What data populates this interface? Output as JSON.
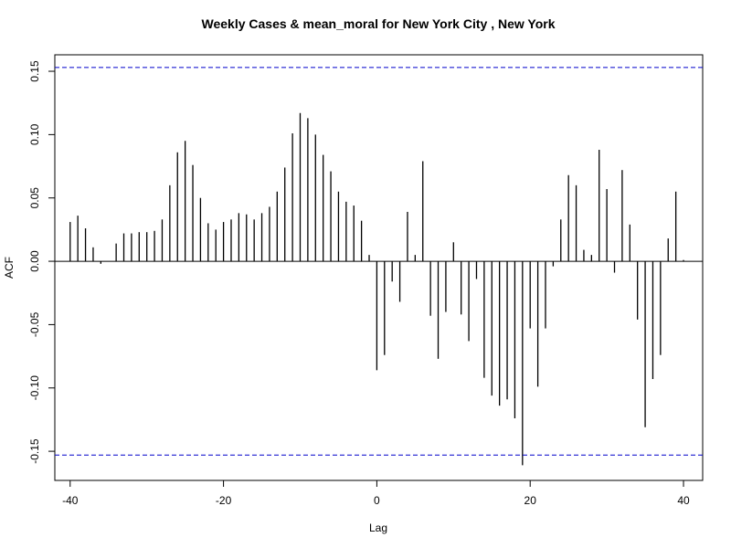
{
  "chart_data": {
    "type": "bar",
    "title": "Weekly Cases & mean_moral for New York City , New York",
    "xlabel": "Lag",
    "ylabel": "ACF",
    "xlim": [
      -42,
      42.5
    ],
    "ylim": [
      -0.173,
      0.163
    ],
    "x_ticks": [
      -40,
      -20,
      0,
      20,
      40
    ],
    "x_tick_labels": [
      "-40",
      "-20",
      "0",
      "20",
      "40"
    ],
    "y_ticks": [
      -0.15,
      -0.1,
      -0.05,
      0.0,
      0.05,
      0.1,
      0.15
    ],
    "y_tick_labels": [
      "-0.15",
      "-0.10",
      "-0.05",
      "0.00",
      "0.05",
      "0.10",
      "0.15"
    ],
    "confidence_limit": 0.153,
    "confidence_color": "#0000cc",
    "bar_color": "#000000",
    "lags": [
      -40,
      -39,
      -38,
      -37,
      -36,
      -35,
      -34,
      -33,
      -32,
      -31,
      -30,
      -29,
      -28,
      -27,
      -26,
      -25,
      -24,
      -23,
      -22,
      -21,
      -20,
      -19,
      -18,
      -17,
      -16,
      -15,
      -14,
      -13,
      -12,
      -11,
      -10,
      -9,
      -8,
      -7,
      -6,
      -5,
      -4,
      -3,
      -2,
      -1,
      0,
      1,
      2,
      3,
      4,
      5,
      6,
      7,
      8,
      9,
      10,
      11,
      12,
      13,
      14,
      15,
      16,
      17,
      18,
      19,
      20,
      21,
      22,
      23,
      24,
      25,
      26,
      27,
      28,
      29,
      30,
      31,
      32,
      33,
      34,
      35,
      36,
      37,
      38,
      39,
      40
    ],
    "acf": [
      0.031,
      0.036,
      0.026,
      0.011,
      -0.002,
      0.0,
      0.014,
      0.022,
      0.022,
      0.023,
      0.023,
      0.024,
      0.033,
      0.06,
      0.086,
      0.095,
      0.076,
      0.05,
      0.03,
      0.025,
      0.031,
      0.033,
      0.038,
      0.037,
      0.033,
      0.038,
      0.043,
      0.055,
      0.074,
      0.101,
      0.117,
      0.113,
      0.1,
      0.084,
      0.071,
      0.055,
      0.047,
      0.044,
      0.032,
      0.005,
      -0.086,
      -0.074,
      -0.016,
      -0.032,
      0.039,
      0.005,
      0.079,
      -0.043,
      -0.077,
      -0.04,
      0.015,
      -0.042,
      -0.063,
      -0.014,
      -0.092,
      -0.106,
      -0.114,
      -0.109,
      -0.124,
      -0.161,
      -0.053,
      -0.099,
      -0.053,
      -0.004,
      0.033,
      0.068,
      0.06,
      0.009,
      0.005,
      0.088,
      0.057,
      -0.009,
      0.072,
      0.029,
      -0.046,
      -0.131,
      -0.093,
      -0.074,
      0.018,
      0.055,
      0.001
    ]
  }
}
